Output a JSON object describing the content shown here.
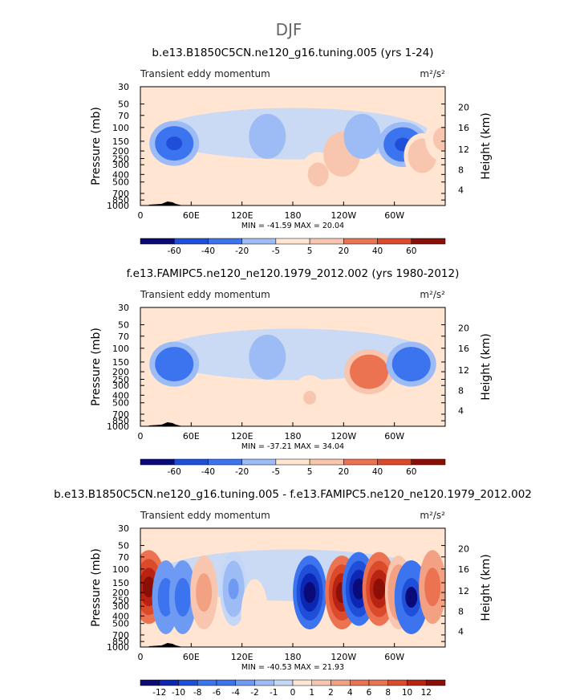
{
  "page_title": "DJF",
  "chart_data": [
    {
      "type": "heatmap",
      "title": "b.e13.B1850C5CN.ne120_g16.tuning.005 (yrs 1-24)",
      "left_label": "Transient eddy momentum",
      "units": "m²/s²",
      "xlabel": "",
      "ylabel": "Pressure (mb)",
      "y2label": "Height (km)",
      "x_ticks": [
        "0",
        "60E",
        "120E",
        "180",
        "120W",
        "60W"
      ],
      "y_ticks": [
        "30",
        "50",
        "70",
        "100",
        "150",
        "200",
        "250",
        "300",
        "400",
        "500",
        "700",
        "850",
        "1000"
      ],
      "y2_ticks": [
        "20",
        "16",
        "12",
        "8",
        "4"
      ],
      "min_max": "MIN = -41.59   MAX = 20.04",
      "colorbar_labels": [
        "-60",
        "-40",
        "-20",
        "-5",
        "5",
        "20",
        "40",
        "60"
      ],
      "features": [
        {
          "lon": 40,
          "p": 160,
          "value": -40
        },
        {
          "lon": 150,
          "p": 130,
          "value": -12
        },
        {
          "lon": 210,
          "p": 400,
          "value": 7
        },
        {
          "lon": 238,
          "p": 220,
          "value": 20
        },
        {
          "lon": 262,
          "p": 130,
          "value": -15
        },
        {
          "lon": 310,
          "p": 165,
          "value": -40
        },
        {
          "lon": 333,
          "p": 230,
          "value": 10
        },
        {
          "lon": 358,
          "p": 140,
          "value": 8
        }
      ]
    },
    {
      "type": "heatmap",
      "title": "f.e13.FAMIPC5.ne120_ne120.1979_2012.002 (yrs 1980-2012)",
      "left_label": "Transient eddy momentum",
      "units": "m²/s²",
      "xlabel": "",
      "ylabel": "Pressure (mb)",
      "y2label": "Height (km)",
      "x_ticks": [
        "0",
        "60E",
        "120E",
        "180",
        "120W",
        "60W"
      ],
      "y_ticks": [
        "30",
        "50",
        "70",
        "100",
        "150",
        "200",
        "250",
        "300",
        "400",
        "500",
        "700",
        "850",
        "1000"
      ],
      "y2_ticks": [
        "20",
        "16",
        "12",
        "8",
        "4"
      ],
      "min_max": "MIN = -37.21   MAX = 34.04",
      "colorbar_labels": [
        "-60",
        "-40",
        "-20",
        "-5",
        "5",
        "20",
        "40",
        "60"
      ],
      "features": [
        {
          "lon": 40,
          "p": 160,
          "value": -35
        },
        {
          "lon": 150,
          "p": 130,
          "value": -18
        },
        {
          "lon": 200,
          "p": 430,
          "value": 6
        },
        {
          "lon": 270,
          "p": 200,
          "value": 34
        },
        {
          "lon": 320,
          "p": 160,
          "value": -37
        }
      ]
    },
    {
      "type": "heatmap",
      "title": "b.e13.B1850C5CN.ne120_g16.tuning.005 - f.e13.FAMIPC5.ne120_ne120.1979_2012.002",
      "left_label": "Transient eddy momentum",
      "units": "m²/s²",
      "xlabel": "",
      "ylabel": "Pressure (mb)",
      "y2label": "Height (km)",
      "x_ticks": [
        "0",
        "60E",
        "120E",
        "180",
        "120W",
        "60W"
      ],
      "y_ticks": [
        "30",
        "50",
        "70",
        "100",
        "150",
        "200",
        "250",
        "300",
        "400",
        "500",
        "700",
        "850",
        "1000"
      ],
      "y2_ticks": [
        "20",
        "16",
        "12",
        "8",
        "4"
      ],
      "min_max": "MIN = -40.53   MAX = 21.93",
      "colorbar_labels": [
        "-12",
        "-10",
        "-8",
        "-6",
        "-4",
        "-2",
        "-1",
        "0",
        "1",
        "2",
        "4",
        "6",
        "8",
        "10",
        "12"
      ],
      "features": [
        {
          "lon": 10,
          "p": 170,
          "value": 14
        },
        {
          "lon": 30,
          "p": 230,
          "value": -6
        },
        {
          "lon": 50,
          "p": 230,
          "value": -6
        },
        {
          "lon": 75,
          "p": 200,
          "value": 3
        },
        {
          "lon": 110,
          "p": 180,
          "value": -2
        },
        {
          "lon": 135,
          "p": 400,
          "value": 1
        },
        {
          "lon": 200,
          "p": 200,
          "value": -14
        },
        {
          "lon": 238,
          "p": 200,
          "value": 14
        },
        {
          "lon": 258,
          "p": 180,
          "value": -14
        },
        {
          "lon": 282,
          "p": 180,
          "value": 13
        },
        {
          "lon": 305,
          "p": 200,
          "value": 4
        },
        {
          "lon": 320,
          "p": 230,
          "value": -12
        },
        {
          "lon": 345,
          "p": 170,
          "value": 6
        }
      ]
    }
  ],
  "colors": {
    "palette": [
      "#0a0a78",
      "#0c27b4",
      "#1f4fd9",
      "#3c73ee",
      "#6f9af4",
      "#9dbcf5",
      "#c4d7f7",
      "#ffe5d2",
      "#f8c6ae",
      "#f3a183",
      "#eb7352",
      "#dc4a2c",
      "#b92412",
      "#8c0f07"
    ],
    "background": "#ffe5d2",
    "topography": "#000000"
  }
}
